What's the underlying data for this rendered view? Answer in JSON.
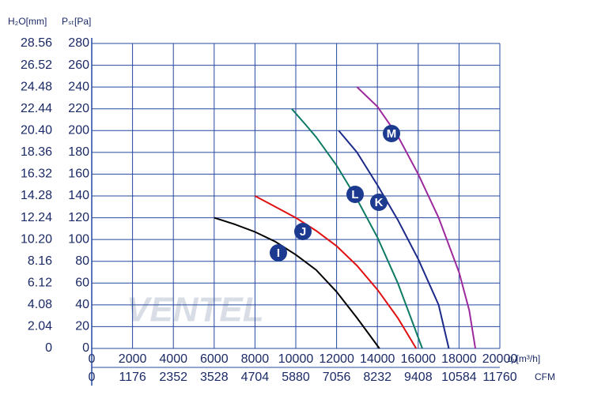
{
  "chart_data": {
    "type": "line",
    "y_axis_label": "Pₛₜ[Pa]",
    "y2_axis_label": "H₂O[mm]",
    "x_axis_label": "qᵥ[m³/h]",
    "x2_axis_label": "CFM",
    "watermark": "VENTEL",
    "xlim": [
      0,
      20000
    ],
    "xticks": [
      0,
      2000,
      4000,
      6000,
      8000,
      10000,
      12000,
      14000,
      16000,
      18000,
      20000
    ],
    "x2lim": [
      0,
      11760
    ],
    "x2ticks": [
      0,
      1176,
      2352,
      3528,
      4704,
      5880,
      7056,
      8232,
      9408,
      10584,
      11760
    ],
    "ylim": [
      0,
      280
    ],
    "yticks": [
      0,
      20,
      40,
      60,
      80,
      100,
      120,
      140,
      160,
      180,
      200,
      220,
      240,
      260,
      280
    ],
    "y2lim": [
      0,
      28.56
    ],
    "y2ticks": [
      0,
      2.04,
      4.08,
      6.12,
      8.16,
      {
        "value": 10.2,
        "label": "10.20"
      },
      12.24,
      14.28,
      16.32,
      18.36,
      {
        "value": 20.4,
        "label": "20.40"
      },
      22.44,
      24.48,
      26.52,
      28.56
    ],
    "grid": true,
    "grid_color": "#2548a0",
    "series": [
      {
        "name": "I",
        "color": "#000000",
        "x": [
          6000,
          7000,
          8000,
          9000,
          10000,
          11000,
          12000,
          13000,
          14100
        ],
        "values": [
          120,
          114,
          107,
          98,
          86,
          72,
          52,
          28,
          0
        ]
      },
      {
        "name": "J",
        "color": "#e01010",
        "x": [
          8000,
          9000,
          10000,
          11000,
          12000,
          13000,
          14000,
          15000,
          15900
        ],
        "values": [
          140,
          130,
          120,
          108,
          94,
          76,
          54,
          28,
          0
        ]
      },
      {
        "name": "L",
        "color": "#0e7a63",
        "x": [
          9800,
          10500,
          11000,
          12000,
          13000,
          14000,
          15000,
          15700,
          16200
        ],
        "values": [
          220,
          205,
          194,
          168,
          137,
          102,
          60,
          25,
          0
        ]
      },
      {
        "name": "K",
        "color": "#1c2a8a",
        "x": [
          12100,
          13000,
          14000,
          15000,
          16000,
          17000,
          17500
        ],
        "values": [
          200,
          180,
          150,
          118,
          82,
          40,
          0
        ]
      },
      {
        "name": "M",
        "color": "#9c2a9c",
        "x": [
          13000,
          14000,
          15000,
          16000,
          17000,
          18000,
          18500,
          18800
        ],
        "values": [
          240,
          222,
          195,
          160,
          120,
          70,
          35,
          0
        ]
      }
    ]
  }
}
